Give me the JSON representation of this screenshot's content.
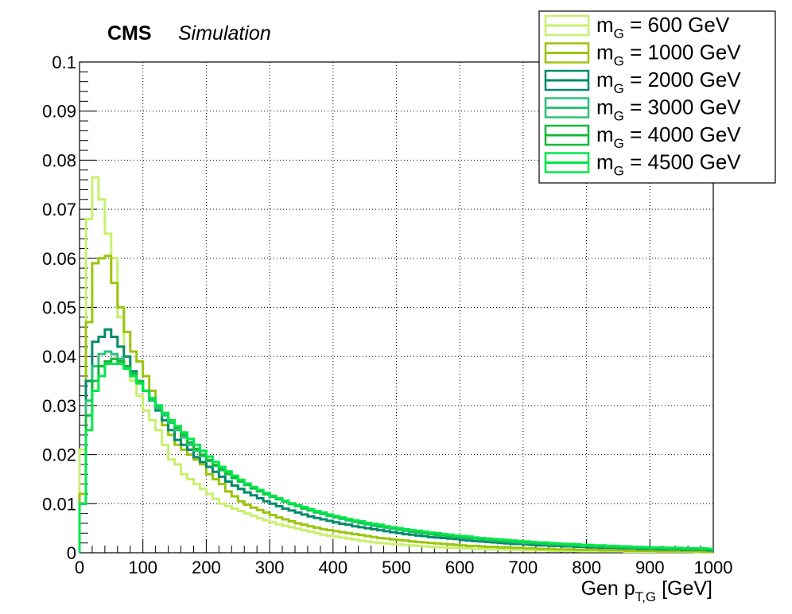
{
  "header": {
    "experiment": "CMS",
    "label": "Simulation"
  },
  "chart_data": {
    "type": "line",
    "style": "step",
    "xlabel_main": "Gen p",
    "xlabel_sub": "T,G",
    "xlabel_unit": " [GeV]",
    "ylabel": "",
    "xlim": [
      0,
      1000
    ],
    "ylim": [
      0,
      0.1
    ],
    "grid": true,
    "legend_position": "top-right",
    "x_ticks": [
      0,
      100,
      200,
      300,
      400,
      500,
      600,
      700,
      800,
      900,
      1000
    ],
    "x_tick_labels": [
      "0",
      "100",
      "200",
      "300",
      "400",
      "500",
      "600",
      "700",
      "800",
      "900",
      "1000"
    ],
    "y_ticks": [
      0,
      0.01,
      0.02,
      0.03,
      0.04,
      0.05,
      0.06,
      0.07,
      0.08,
      0.09,
      0.1
    ],
    "y_tick_labels": [
      "0",
      "0.01",
      "0.02",
      "0.03",
      "0.04",
      "0.05",
      "0.06",
      "0.07",
      "0.08",
      "0.09",
      "0.1"
    ],
    "bin_width": 10,
    "series": [
      {
        "legend_symbol": "m",
        "legend_sub": "G",
        "legend_rest": " = 600 GeV",
        "color": "#c8f06e",
        "values": [
          0.021,
          0.068,
          0.0765,
          0.072,
          0.065,
          0.06,
          0.048,
          0.04,
          0.035,
          0.032,
          0.029,
          0.027,
          0.025,
          0.022,
          0.019,
          0.018,
          0.016,
          0.015,
          0.014,
          0.013,
          0.012,
          0.011,
          0.01,
          0.0095,
          0.009,
          0.0085,
          0.008,
          0.0075,
          0.007,
          0.0066,
          0.0062,
          0.0058,
          0.0055,
          0.0052,
          0.0049,
          0.0046,
          0.0043,
          0.004,
          0.0037,
          0.0035,
          0.0033,
          0.0031,
          0.0029,
          0.0027,
          0.0025,
          0.0023,
          0.0021,
          0.002,
          0.0019,
          0.0018,
          0.0017,
          0.0016,
          0.0015,
          0.0014,
          0.0013,
          0.0012,
          0.0011,
          0.0011,
          0.001,
          0.001,
          0.0009,
          0.0009,
          0.0008,
          0.0008,
          0.0007,
          0.0007,
          0.0007,
          0.0006,
          0.0006,
          0.0006,
          0.0005,
          0.0005,
          0.0005,
          0.0005,
          0.0004,
          0.0004,
          0.0004,
          0.0004,
          0.0004,
          0.0003,
          0.0003,
          0.0003,
          0.0003,
          0.0003,
          0.0003,
          0.0003,
          0.0002,
          0.0002,
          0.0002,
          0.0002,
          0.0002,
          0.0002,
          0.0002,
          0.0002,
          0.0002,
          0.0002,
          0.0002,
          0.0001,
          0.0001,
          0.0001
        ]
      },
      {
        "legend_symbol": "m",
        "legend_sub": "G",
        "legend_rest": " = 1000 GeV",
        "color": "#9cc40e",
        "values": [
          0.012,
          0.047,
          0.059,
          0.06,
          0.0605,
          0.055,
          0.05,
          0.045,
          0.041,
          0.039,
          0.036,
          0.033,
          0.03,
          0.026,
          0.024,
          0.022,
          0.021,
          0.02,
          0.019,
          0.018,
          0.016,
          0.015,
          0.014,
          0.0125,
          0.0115,
          0.0105,
          0.0098,
          0.0092,
          0.0087,
          0.0082,
          0.0077,
          0.0072,
          0.0068,
          0.0064,
          0.006,
          0.0057,
          0.0054,
          0.0051,
          0.0048,
          0.0046,
          0.0044,
          0.0042,
          0.004,
          0.0038,
          0.0036,
          0.0034,
          0.0032,
          0.003,
          0.0029,
          0.0027,
          0.0026,
          0.0025,
          0.0023,
          0.0022,
          0.0021,
          0.002,
          0.0019,
          0.0018,
          0.0017,
          0.0016,
          0.0015,
          0.0014,
          0.0014,
          0.0013,
          0.0012,
          0.0012,
          0.0011,
          0.0011,
          0.001,
          0.001,
          0.0009,
          0.0009,
          0.0008,
          0.0008,
          0.0008,
          0.0007,
          0.0007,
          0.0007,
          0.0006,
          0.0006,
          0.0006,
          0.0006,
          0.0005,
          0.0005,
          0.0005,
          0.0005,
          0.0004,
          0.0004,
          0.0004,
          0.0004,
          0.0004,
          0.0003,
          0.0003,
          0.0003,
          0.0003,
          0.0003,
          0.0003,
          0.0003,
          0.0002,
          0.0002
        ]
      },
      {
        "legend_symbol": "m",
        "legend_sub": "G",
        "legend_rest": " = 2000 GeV",
        "color": "#008b6b",
        "values": [
          0.01,
          0.035,
          0.043,
          0.044,
          0.0455,
          0.044,
          0.042,
          0.04,
          0.037,
          0.035,
          0.033,
          0.031,
          0.029,
          0.027,
          0.025,
          0.023,
          0.022,
          0.021,
          0.0195,
          0.0185,
          0.0175,
          0.0165,
          0.0155,
          0.0145,
          0.0137,
          0.013,
          0.0123,
          0.0117,
          0.0111,
          0.0105,
          0.01,
          0.0095,
          0.009,
          0.0086,
          0.0082,
          0.0078,
          0.0074,
          0.0071,
          0.0068,
          0.0065,
          0.0062,
          0.0059,
          0.0057,
          0.0054,
          0.0052,
          0.005,
          0.0048,
          0.0046,
          0.0044,
          0.0042,
          0.004,
          0.0038,
          0.0037,
          0.0035,
          0.0034,
          0.0032,
          0.0031,
          0.003,
          0.0029,
          0.0028,
          0.0026,
          0.0025,
          0.0024,
          0.0023,
          0.0022,
          0.0021,
          0.002,
          0.0019,
          0.0018,
          0.0018,
          0.0017,
          0.0016,
          0.0015,
          0.0015,
          0.0014,
          0.0014,
          0.0013,
          0.0013,
          0.0012,
          0.0012,
          0.0011,
          0.0011,
          0.001,
          0.001,
          0.001,
          0.0009,
          0.0009,
          0.0009,
          0.0008,
          0.0008,
          0.0008,
          0.0007,
          0.0007,
          0.0007,
          0.0007,
          0.0006,
          0.0006,
          0.0006,
          0.0006,
          0.0005
        ]
      },
      {
        "legend_symbol": "m",
        "legend_sub": "G",
        "legend_rest": " = 3000 GeV",
        "color": "#2ec07a",
        "values": [
          0.01,
          0.031,
          0.038,
          0.0405,
          0.041,
          0.0405,
          0.0395,
          0.038,
          0.0365,
          0.035,
          0.033,
          0.031,
          0.0295,
          0.028,
          0.0265,
          0.025,
          0.0235,
          0.022,
          0.0208,
          0.0197,
          0.0187,
          0.0177,
          0.0168,
          0.016,
          0.0152,
          0.0145,
          0.0138,
          0.0131,
          0.0125,
          0.0119,
          0.0114,
          0.0109,
          0.0104,
          0.0099,
          0.0095,
          0.009,
          0.0086,
          0.0082,
          0.0079,
          0.0075,
          0.0072,
          0.0069,
          0.0066,
          0.0063,
          0.006,
          0.0058,
          0.0055,
          0.0053,
          0.0051,
          0.0049,
          0.0047,
          0.0045,
          0.0043,
          0.0041,
          0.004,
          0.0038,
          0.0036,
          0.0035,
          0.0034,
          0.0032,
          0.0031,
          0.003,
          0.0029,
          0.0027,
          0.0026,
          0.0025,
          0.0024,
          0.0023,
          0.0022,
          0.0021,
          0.002,
          0.002,
          0.0019,
          0.0018,
          0.0017,
          0.0017,
          0.0016,
          0.0015,
          0.0015,
          0.0014,
          0.0014,
          0.0013,
          0.0013,
          0.0012,
          0.0012,
          0.0011,
          0.0011,
          0.001,
          0.001,
          0.001,
          0.0009,
          0.0009,
          0.0009,
          0.0008,
          0.0008,
          0.0008,
          0.0007,
          0.0007,
          0.0007,
          0.0007
        ]
      },
      {
        "legend_symbol": "m",
        "legend_sub": "G",
        "legend_rest": " = 4000 GeV",
        "color": "#16b83c",
        "values": [
          0.01,
          0.028,
          0.035,
          0.038,
          0.039,
          0.0395,
          0.039,
          0.038,
          0.0365,
          0.035,
          0.033,
          0.0315,
          0.03,
          0.0285,
          0.027,
          0.0255,
          0.024,
          0.0225,
          0.0212,
          0.02,
          0.0189,
          0.0179,
          0.017,
          0.0161,
          0.0153,
          0.0146,
          0.0139,
          0.0132,
          0.0126,
          0.012,
          0.0115,
          0.011,
          0.0105,
          0.01,
          0.0096,
          0.0092,
          0.0088,
          0.0084,
          0.008,
          0.0077,
          0.0074,
          0.0071,
          0.0068,
          0.0065,
          0.0062,
          0.006,
          0.0057,
          0.0055,
          0.0053,
          0.0051,
          0.0049,
          0.0047,
          0.0045,
          0.0043,
          0.0041,
          0.004,
          0.0038,
          0.0037,
          0.0035,
          0.0034,
          0.0033,
          0.0031,
          0.003,
          0.0029,
          0.0028,
          0.0027,
          0.0026,
          0.0025,
          0.0024,
          0.0023,
          0.0022,
          0.0021,
          0.002,
          0.002,
          0.0019,
          0.0018,
          0.0017,
          0.0017,
          0.0016,
          0.0016,
          0.0015,
          0.0014,
          0.0014,
          0.0013,
          0.0013,
          0.0012,
          0.0012,
          0.0011,
          0.0011,
          0.0011,
          0.001,
          0.001,
          0.001,
          0.0009,
          0.0009,
          0.0009,
          0.0008,
          0.0008,
          0.0008,
          0.0008
        ]
      },
      {
        "legend_symbol": "m",
        "legend_sub": "G",
        "legend_rest": " = 4500 GeV",
        "color": "#00e848",
        "values": [
          0.01,
          0.025,
          0.033,
          0.036,
          0.0385,
          0.0385,
          0.0385,
          0.0375,
          0.036,
          0.0345,
          0.033,
          0.0315,
          0.03,
          0.0285,
          0.027,
          0.0258,
          0.0245,
          0.0232,
          0.022,
          0.0208,
          0.0196,
          0.0185,
          0.0175,
          0.0166,
          0.0157,
          0.0149,
          0.0141,
          0.0134,
          0.0128,
          0.0122,
          0.0116,
          0.0111,
          0.0106,
          0.0101,
          0.0097,
          0.0093,
          0.0089,
          0.0085,
          0.0082,
          0.0078,
          0.0075,
          0.0072,
          0.0069,
          0.0066,
          0.0064,
          0.0061,
          0.0059,
          0.0057,
          0.0054,
          0.0052,
          0.005,
          0.0048,
          0.0046,
          0.0045,
          0.0043,
          0.0041,
          0.004,
          0.0038,
          0.0037,
          0.0035,
          0.0034,
          0.0033,
          0.0031,
          0.003,
          0.0029,
          0.0028,
          0.0027,
          0.0026,
          0.0025,
          0.0024,
          0.0023,
          0.0022,
          0.0021,
          0.0021,
          0.002,
          0.0019,
          0.0018,
          0.0018,
          0.0017,
          0.0016,
          0.0016,
          0.0015,
          0.0015,
          0.0014,
          0.0014,
          0.0013,
          0.0013,
          0.0012,
          0.0012,
          0.0011,
          0.0011,
          0.0011,
          0.001,
          0.001,
          0.001,
          0.0009,
          0.0009,
          0.0009,
          0.0009,
          0.0008
        ]
      }
    ]
  }
}
